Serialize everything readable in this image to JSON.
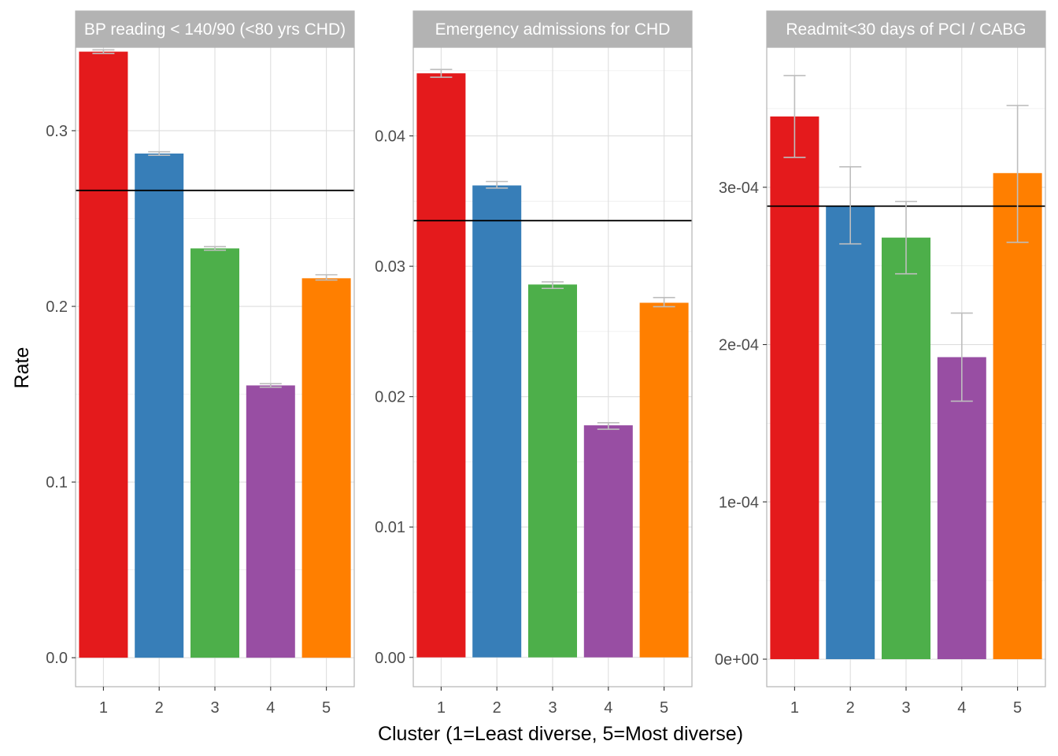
{
  "chart_data": {
    "type": "bar",
    "xlabel": "Cluster (1=Least diverse, 5=Most diverse)",
    "ylabel": "Rate",
    "categories": [
      "1",
      "2",
      "3",
      "4",
      "5"
    ],
    "colors": [
      "#E41A1C",
      "#377EB8",
      "#4DAF4A",
      "#984EA3",
      "#FF7F00"
    ],
    "grid": true,
    "reference_line_color": "#000000",
    "errorbar_color": "#BEBEBE",
    "panels": [
      {
        "title": "BP reading < 140/90 (<80 yrs CHD)",
        "values": [
          0.345,
          0.287,
          0.233,
          0.155,
          0.216
        ],
        "error_low": [
          0.344,
          0.286,
          0.232,
          0.154,
          0.215
        ],
        "error_high": [
          0.346,
          0.288,
          0.234,
          0.156,
          0.218
        ],
        "reference_line": 0.266,
        "ylim": [
          -0.0165,
          0.3475
        ],
        "yticks": [
          0,
          0.1,
          0.2,
          0.3
        ],
        "ytick_labels": [
          "0.0",
          "0.1",
          "0.2",
          "0.3"
        ]
      },
      {
        "title": "Emergency admissions for CHD",
        "values": [
          0.0448,
          0.0362,
          0.0286,
          0.0178,
          0.0272
        ],
        "error_low": [
          0.0445,
          0.036,
          0.0283,
          0.0175,
          0.0269
        ],
        "error_high": [
          0.0451,
          0.0365,
          0.0288,
          0.018,
          0.0276
        ],
        "reference_line": 0.0335,
        "ylim": [
          -0.00225,
          0.0468
        ],
        "yticks": [
          0,
          0.01,
          0.02,
          0.03,
          0.04
        ],
        "ytick_labels": [
          "0.00",
          "0.01",
          "0.02",
          "0.03",
          "0.04"
        ]
      },
      {
        "title": "Readmit<30 days of PCI / CABG",
        "values": [
          0.000345,
          0.000288,
          0.000268,
          0.000192,
          0.000309
        ],
        "error_low": [
          0.000319,
          0.000264,
          0.000245,
          0.000164,
          0.000265
        ],
        "error_high": [
          0.000371,
          0.000313,
          0.000291,
          0.00022,
          0.000352
        ],
        "reference_line": 0.000288,
        "ylim": [
          -1.75e-05,
          0.000389
        ],
        "yticks": [
          0,
          0.0001,
          0.0002,
          0.0003
        ],
        "ytick_labels": [
          "0e+00",
          "1e-04",
          "2e-04",
          "3e-04"
        ]
      }
    ]
  }
}
